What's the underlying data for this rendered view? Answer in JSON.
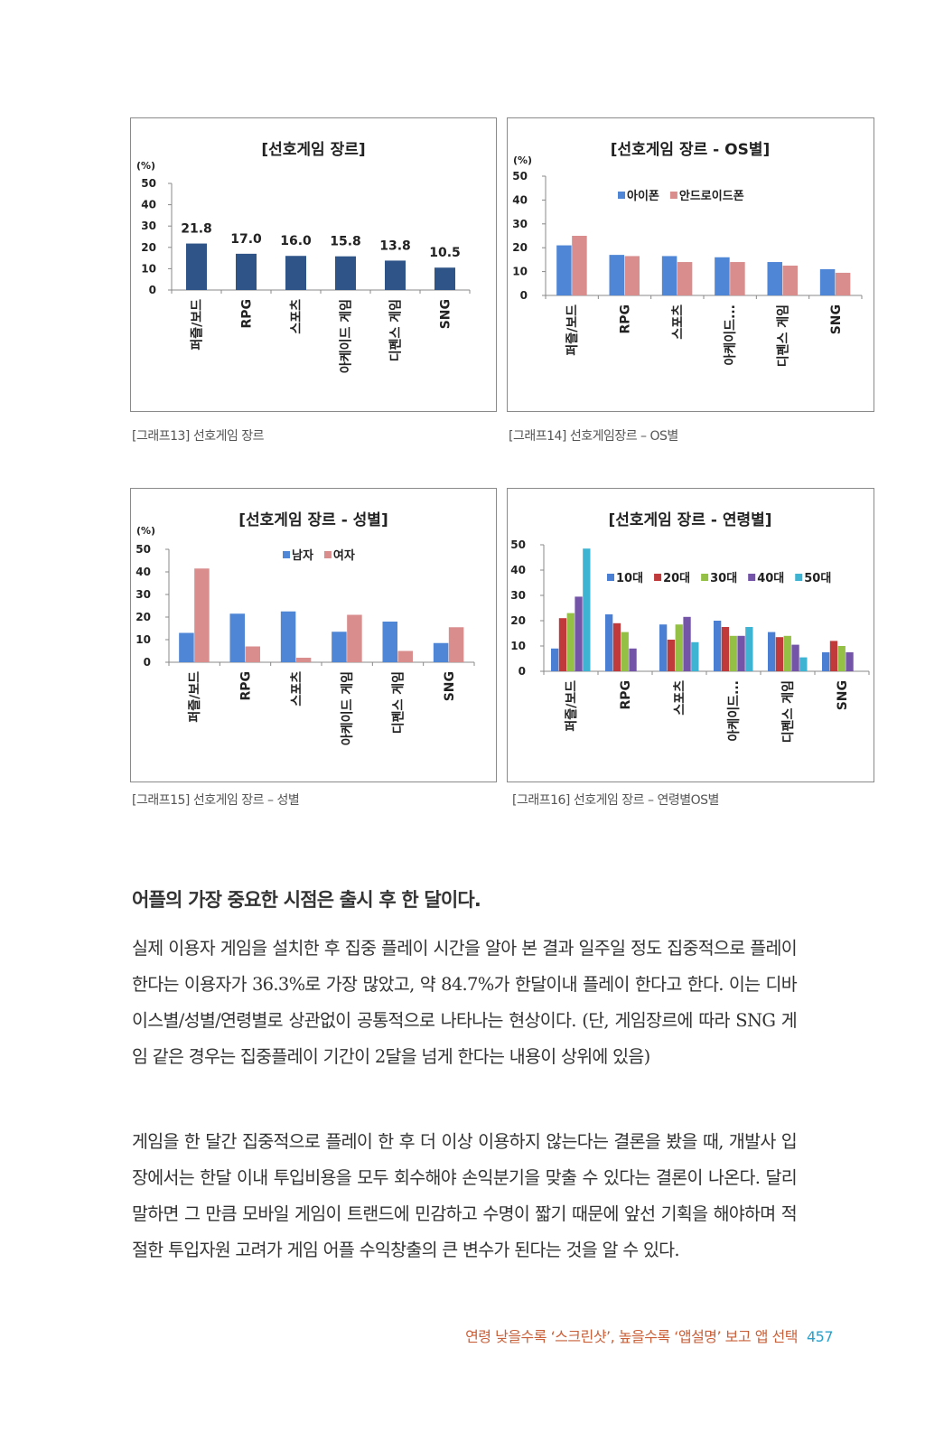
{
  "chart_data": [
    {
      "type": "bar",
      "title": "[선호게임 장르]",
      "unit": "(%)",
      "categories": [
        "퍼즐/보드",
        "RPG",
        "스포츠",
        "아케이드 게임",
        "디펜스 게임",
        "SNG"
      ],
      "values": [
        21.8,
        17.0,
        16.0,
        15.8,
        13.8,
        10.5
      ],
      "data_labels": [
        "21.8",
        "17.0",
        "16.0",
        "15.8",
        "13.8",
        "10.5"
      ],
      "yticks": [
        "0",
        "10",
        "20",
        "30",
        "40",
        "50"
      ],
      "ylim": [
        0,
        50
      ],
      "colors": [
        "#2f5487"
      ]
    },
    {
      "type": "bar",
      "title": "[선호게임 장르 - OS별]",
      "unit": "(%)",
      "categories": [
        "퍼즐/보드",
        "RPG",
        "스포츠",
        "아케이드...",
        "디펜스 게임",
        "SNG"
      ],
      "series": [
        {
          "name": "아이폰",
          "values": [
            21,
            17,
            16.5,
            16,
            14,
            11
          ]
        },
        {
          "name": "안드로이드폰",
          "values": [
            25,
            16.5,
            14,
            14,
            12.5,
            9.5
          ]
        }
      ],
      "yticks": [
        "0",
        "10",
        "20",
        "30",
        "40",
        "50"
      ],
      "ylim": [
        0,
        50
      ],
      "legend": "top-right",
      "colors": [
        "#4f86d6",
        "#d98d8d"
      ]
    },
    {
      "type": "bar",
      "title": "[선호게임 장르 - 성별]",
      "unit": "(%)",
      "categories": [
        "퍼즐/보드",
        "RPG",
        "스포츠",
        "아케이드 게임",
        "디펜스 게임",
        "SNG"
      ],
      "series": [
        {
          "name": "남자",
          "values": [
            13,
            21.5,
            22.5,
            13.5,
            18,
            8.5
          ]
        },
        {
          "name": "여자",
          "values": [
            41.5,
            7,
            2,
            21,
            5,
            15.5
          ]
        }
      ],
      "yticks": [
        "0",
        "10",
        "20",
        "30",
        "40",
        "50"
      ],
      "ylim": [
        0,
        50
      ],
      "legend": "top-right",
      "colors": [
        "#4f86d6",
        "#d98d8d"
      ]
    },
    {
      "type": "bar",
      "title": "[선호게임 장르 - 연령별]",
      "unit": "",
      "categories": [
        "퍼즐/보드",
        "RPG",
        "스포츠",
        "아케이드...",
        "디펜스 게임",
        "SNG"
      ],
      "series": [
        {
          "name": "10대",
          "values": [
            9,
            22.5,
            18.5,
            20,
            15.5,
            7.5
          ]
        },
        {
          "name": "20대",
          "values": [
            21,
            19,
            12.5,
            17.5,
            13.5,
            12
          ]
        },
        {
          "name": "30대",
          "values": [
            23,
            15.5,
            18.5,
            14,
            14,
            10
          ]
        },
        {
          "name": "40대",
          "values": [
            29.5,
            9,
            21.5,
            14,
            10.5,
            7.5
          ]
        },
        {
          "name": "50대",
          "values": [
            48.5,
            0,
            11.5,
            17.5,
            5.5,
            0
          ]
        }
      ],
      "yticks": [
        "0",
        "10",
        "20",
        "30",
        "40",
        "50"
      ],
      "ylim": [
        0,
        50
      ],
      "legend": "top-right",
      "colors": [
        "#4a7fd4",
        "#c0393b",
        "#93c045",
        "#7354a8",
        "#3fb4d2"
      ]
    }
  ],
  "captions": {
    "c13": "[그래프13] 선호게임 장르",
    "c14": "[그래프14] 선호게임장르 – OS별",
    "c15": "[그래프15] 선호게임 장르 – 성별",
    "c16": "[그래프16] 선호게임 장르 – 연령별OS별"
  },
  "article": {
    "heading": "어플의 가장 중요한 시점은 출시 후 한 달이다.",
    "paragraph1": "실제 이용자 게임을 설치한 후 집중 플레이 시간을 알아 본 결과 일주일 정도 집중적으로 플레이 한다는 이용자가 36.3%로 가장 많았고, 약 84.7%가 한달이내 플레이 한다고 한다. 이는 디바이스별/성별/연령별로 상관없이 공통적으로 나타나는 현상이다. (단, 게임장르에 따라 SNG 게임 같은 경우는 집중플레이 기간이 2달을 넘게 한다는 내용이 상위에 있음)",
    "paragraph2": "게임을 한 달간 집중적으로 플레이 한 후 더 이상 이용하지 않는다는 결론을 봤을 때, 개발사 입장에서는 한달 이내 투입비용을 모두 회수해야 손익분기을 맞출 수 있다는 결론이 나온다. 달리 말하면 그 만큼 모바일 게임이 트랜드에 민감하고 수명이 짧기 때문에 앞선 기획을 해야하며 적절한 투입자원 고려가 게임 어플 수익창출의 큰 변수가 된다는 것을 알 수 있다."
  },
  "footer": {
    "text": "연령 낮을수록 ‘스크린샷’, 높을수록 ‘앱설명’ 보고 앱 선택",
    "page_number": "457"
  }
}
